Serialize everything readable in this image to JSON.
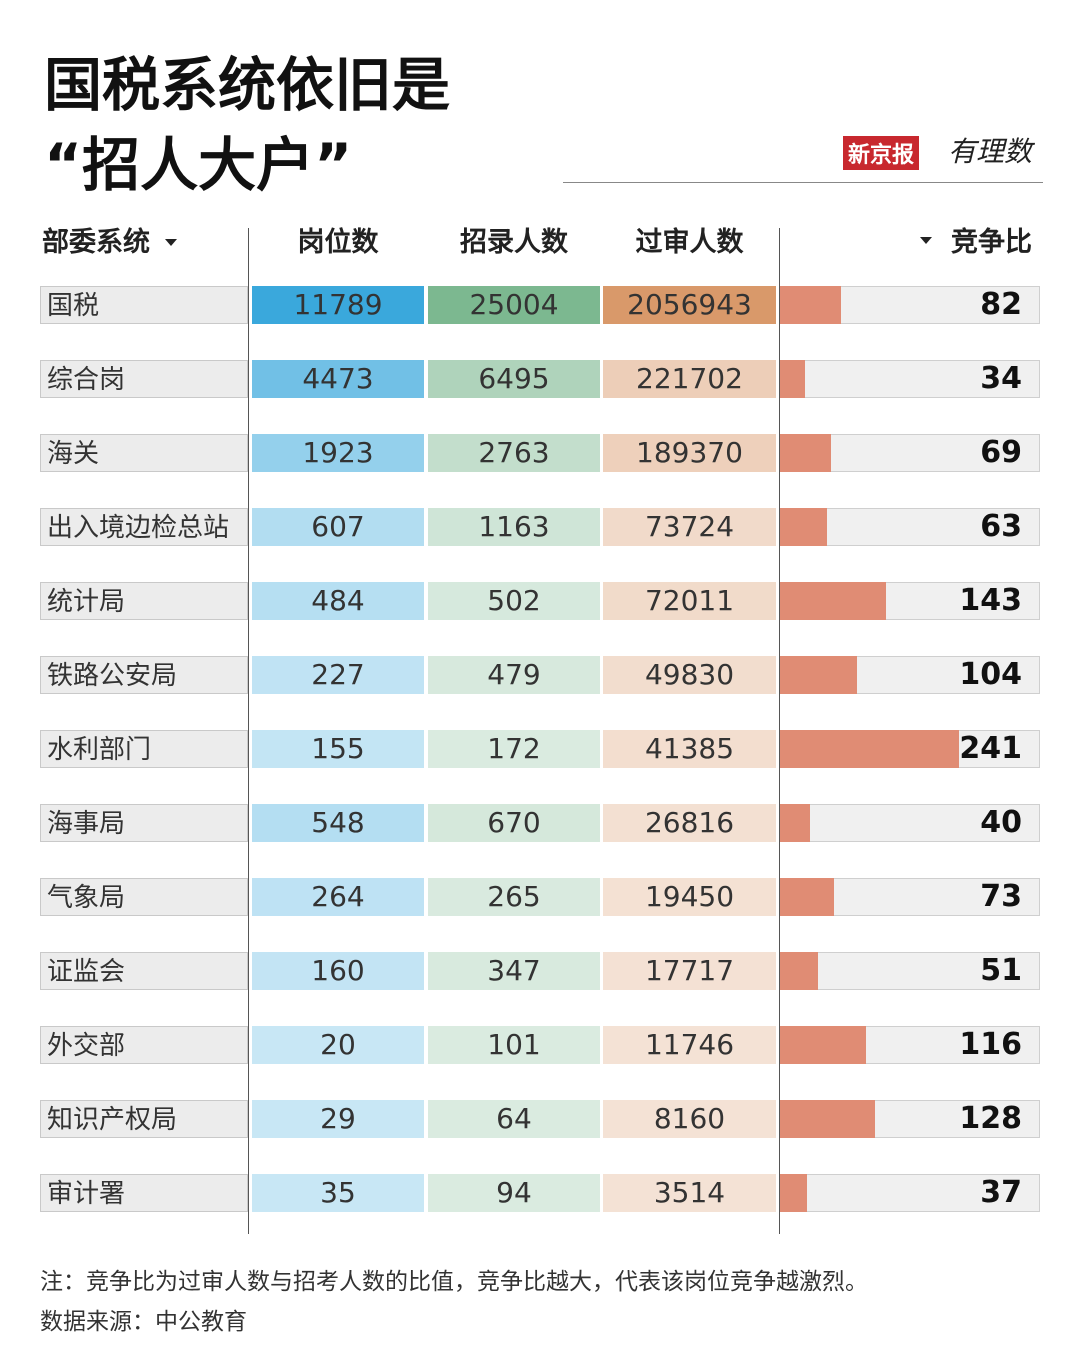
{
  "header": {
    "title_lines": [
      "国税系统依旧是",
      "“招人大户”"
    ],
    "logo": [
      "新京报",
      "有理数"
    ]
  },
  "table": {
    "columns": [
      "部委系统",
      "岗位数",
      "招录人数",
      "过审人数",
      "竞争比"
    ],
    "column_colors": [
      "#3aa8dc",
      "#7cb890",
      "#d9996a"
    ],
    "bar_color": "#e08c74",
    "bar_max": 350,
    "rows": [
      [
        "国税",
        11789,
        25004,
        2056943,
        82
      ],
      [
        "综合岗",
        4473,
        6495,
        221702,
        34
      ],
      [
        "海关",
        1923,
        2763,
        189370,
        69
      ],
      [
        "出入境边检总站",
        607,
        1163,
        73724,
        63
      ],
      [
        "统计局",
        484,
        502,
        72011,
        143
      ],
      [
        "铁路公安局",
        227,
        479,
        49830,
        104
      ],
      [
        "水利部门",
        155,
        172,
        41385,
        241
      ],
      [
        "海事局",
        548,
        670,
        26816,
        40
      ],
      [
        "气象局",
        264,
        265,
        19450,
        73
      ],
      [
        "证监会",
        160,
        347,
        17717,
        51
      ],
      [
        "外交部",
        20,
        101,
        11746,
        116
      ],
      [
        "知识产权局",
        29,
        64,
        8160,
        128
      ],
      [
        "审计署",
        35,
        94,
        3514,
        37
      ]
    ]
  },
  "notes": [
    "注：竞争比为过审人数与招考人数的比值，竞争比越大，代表该岗位竞争越激烈。",
    "数据来源：中公教育"
  ]
}
